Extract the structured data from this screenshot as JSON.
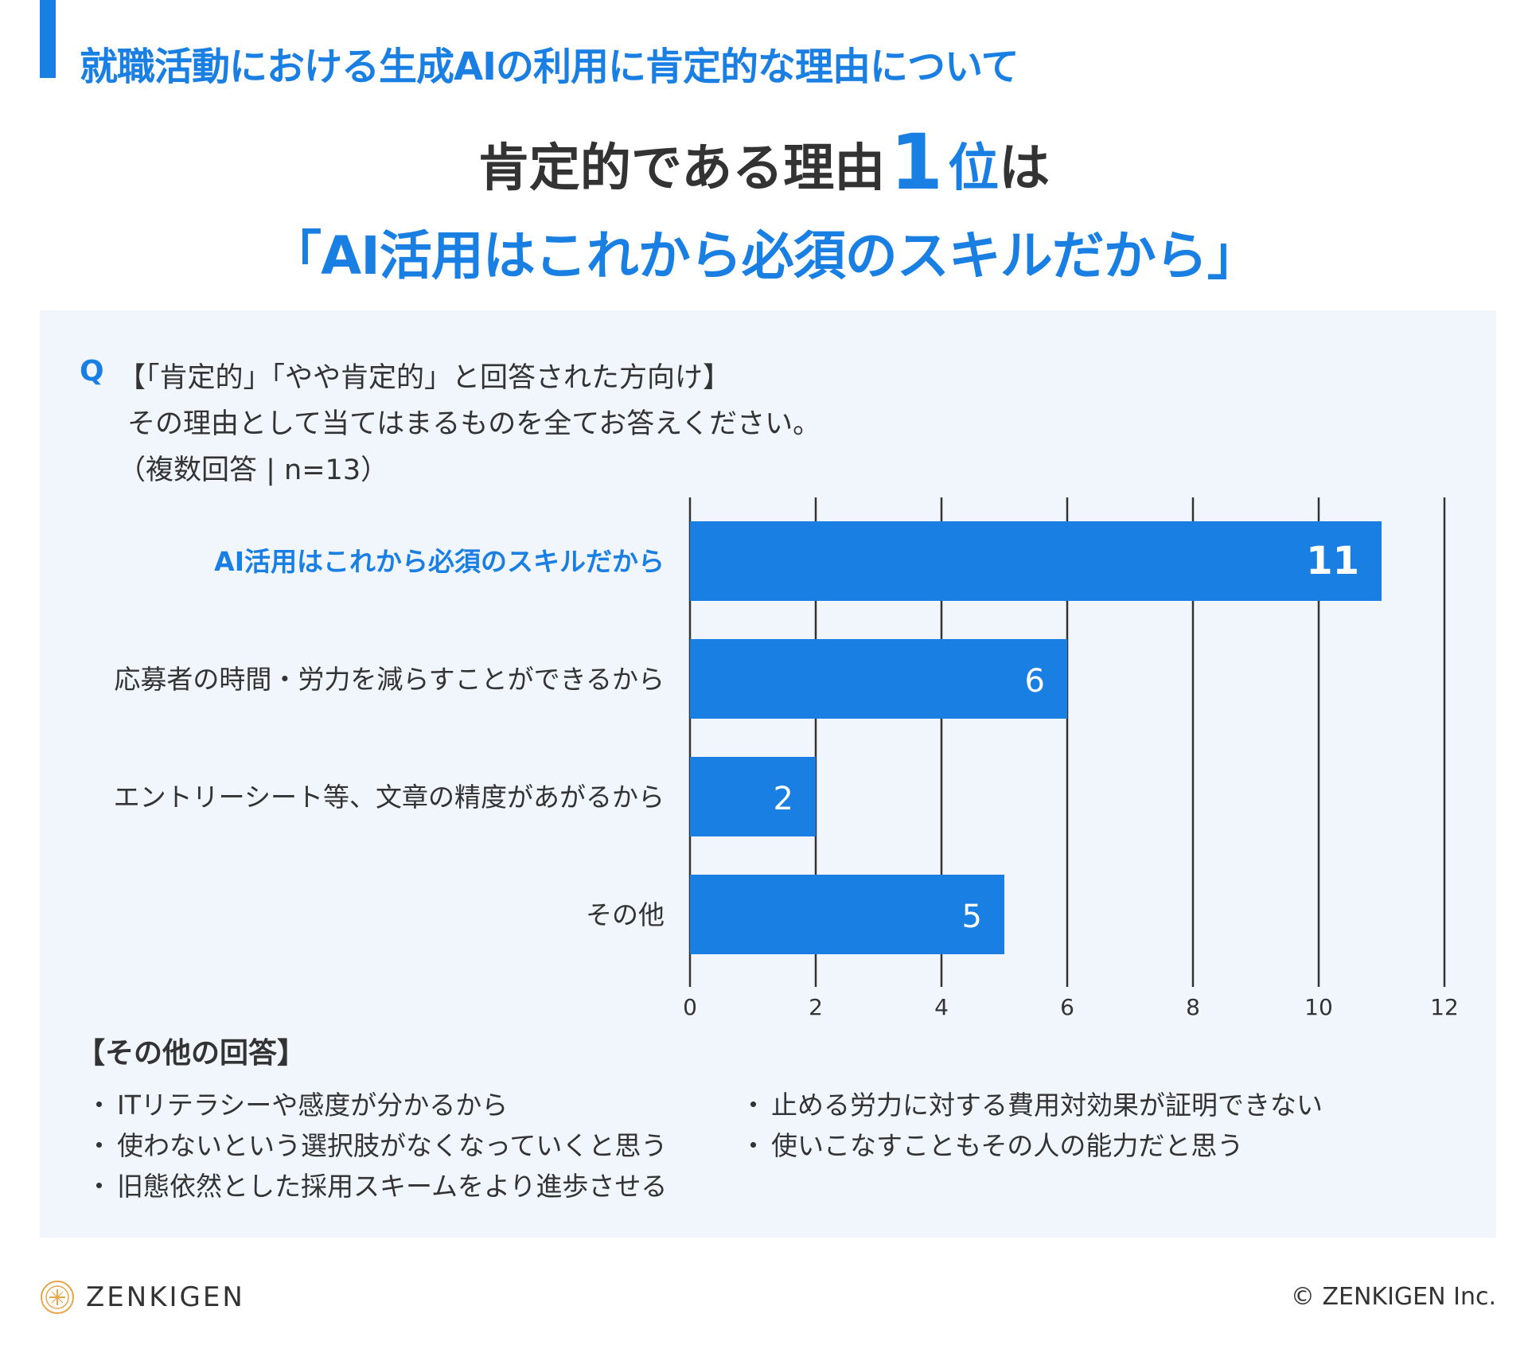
{
  "header": {
    "section_title": "就職活動における生成AIの利用に肯定的な理由について",
    "headline_prefix": "肯定的である理由",
    "headline_rank": "1",
    "headline_rank_unit": "位",
    "headline_suffix": "は",
    "headline_answer": "「AI活用はこれから必須のスキルだから」"
  },
  "question": {
    "mark": "Q",
    "line1": "【「肯定的」「やや肯定的」と回答された方向け】",
    "line2": "その理由として当てはまるものを全てお答えください。",
    "line3": "（複数回答 | n=13）"
  },
  "chart_data": {
    "type": "bar",
    "orientation": "horizontal",
    "categories": [
      "AI活用はこれから必須のスキルだから",
      "応募者の時間・労力を減らすことができるから",
      "エントリーシート等、文章の精度があがるから",
      "その他"
    ],
    "values": [
      11,
      6,
      2,
      5
    ],
    "value_labels": [
      "11",
      "6",
      "2",
      "5"
    ],
    "highlight_index": 0,
    "xlim": [
      0,
      12
    ],
    "ticks": [
      0,
      2,
      4,
      6,
      8,
      10,
      12
    ],
    "tick_labels": [
      "0",
      "2",
      "4",
      "6",
      "8",
      "10",
      "12"
    ],
    "grid": true,
    "title": "",
    "xlabel": "",
    "ylabel": "",
    "colors": {
      "bar": "#1a7fe3",
      "highlight_label": "#1a7fe3",
      "label": "#333333",
      "grid": "#333333"
    }
  },
  "other_answers": {
    "title": "【その他の回答】",
    "bullet": "・",
    "items": [
      "ITリテラシーや感度が分かるから",
      "止める労力に対する費用対効果が証明できない",
      "使わないという選択肢がなくなっていくと思う",
      "使いこなすこともその人の能力だと思う",
      "旧態依然とした採用スキームをより進歩させる"
    ]
  },
  "footer": {
    "logo_text": "ZENKIGEN",
    "copyright": "© ZENKIGEN Inc."
  },
  "colors": {
    "accent": "#1a7fe3",
    "panel": "#f1f6fd",
    "text": "#333333",
    "logo": "#e8a64a"
  }
}
